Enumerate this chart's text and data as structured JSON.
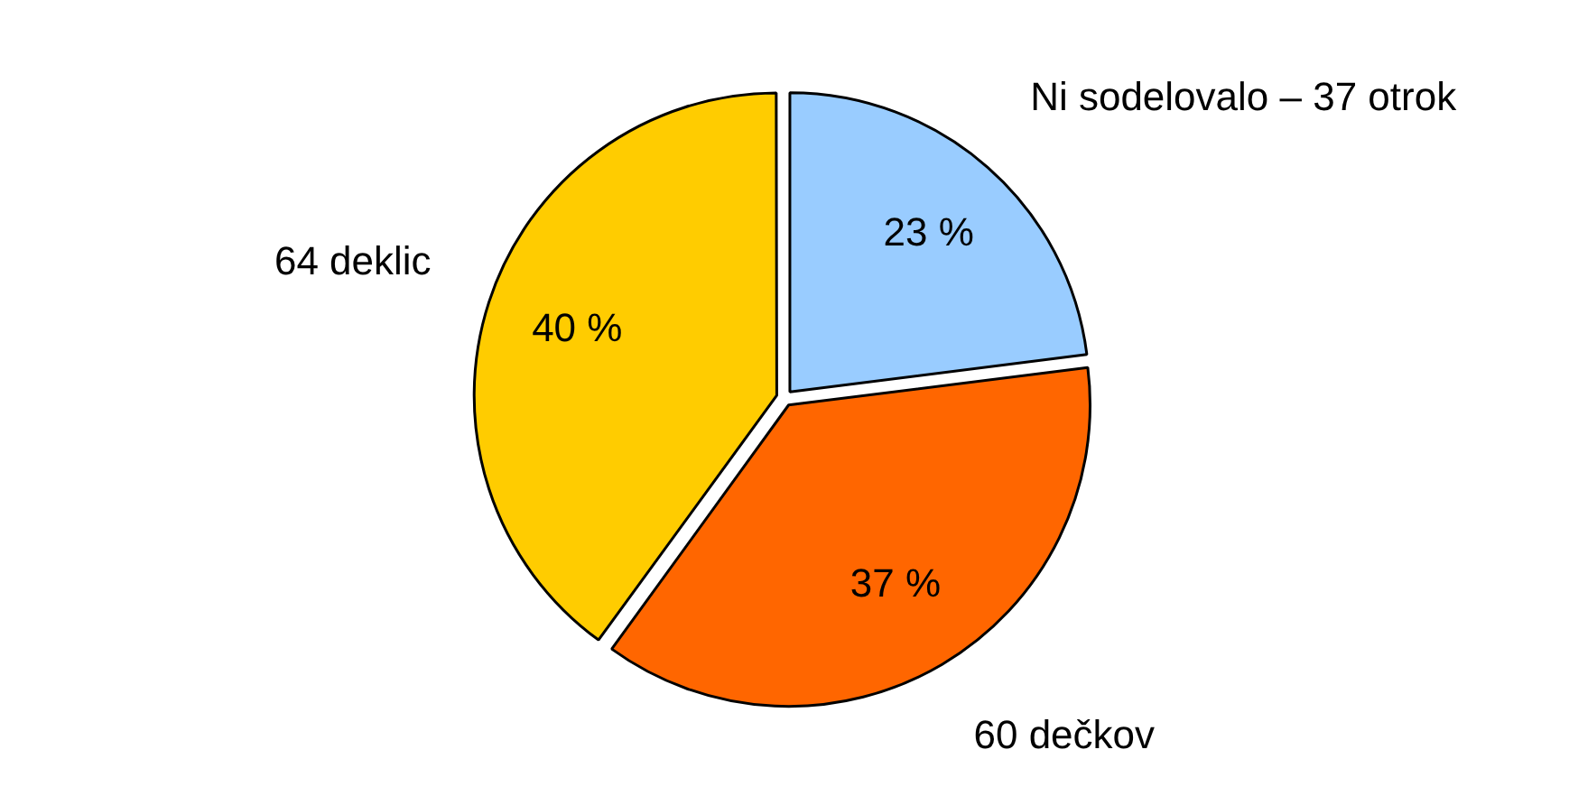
{
  "chart_data": {
    "type": "pie",
    "categories": [
      "Ni sodelovalo – 37 otrok",
      "60 dečkov",
      "64 deklic"
    ],
    "values": [
      23,
      37,
      40
    ],
    "colors": [
      "#99ccff",
      "#ff6600",
      "#ffcc00"
    ],
    "value_labels": [
      "23 %",
      "37 %",
      "40 %"
    ]
  }
}
